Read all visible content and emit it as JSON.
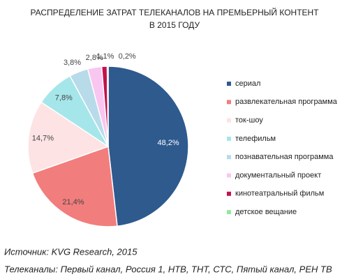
{
  "chart_data": {
    "type": "pie",
    "title": [
      "РАСПРЕДЕЛЕНИЕ ЗАТРАТ ТЕЛЕКАНАЛОВ НА ПРЕМЬЕРНЫЙ КОНТЕНТ",
      "В 2015 ГОДУ"
    ],
    "categories": [
      "сериал",
      "развлекательная программа",
      "ток-шоу",
      "телефильм",
      "познавательная программа",
      "документальный проект",
      "кинотеатральный фильм",
      "детское вещание"
    ],
    "values": [
      48.2,
      21.4,
      14.7,
      7.8,
      3.8,
      2.8,
      1.1,
      0.2
    ],
    "value_labels": [
      "48,2%",
      "21,4%",
      "14,7%",
      "7,8%",
      "3,8%",
      "2,8%",
      "1,1%",
      "0,2%"
    ],
    "colors": [
      "#2e5a8e",
      "#f27d7d",
      "#fde3e3",
      "#a5e6eb",
      "#b8dbe9",
      "#f9c6f1",
      "#c3124b",
      "#94e89c"
    ],
    "legend": "right",
    "notes": [
      "Источник: KVG Research, 2015",
      "Телеканалы: Первый канал, Россия 1, НТВ, ТНТ, СТС, Пятый канал, РЕН ТВ"
    ]
  }
}
